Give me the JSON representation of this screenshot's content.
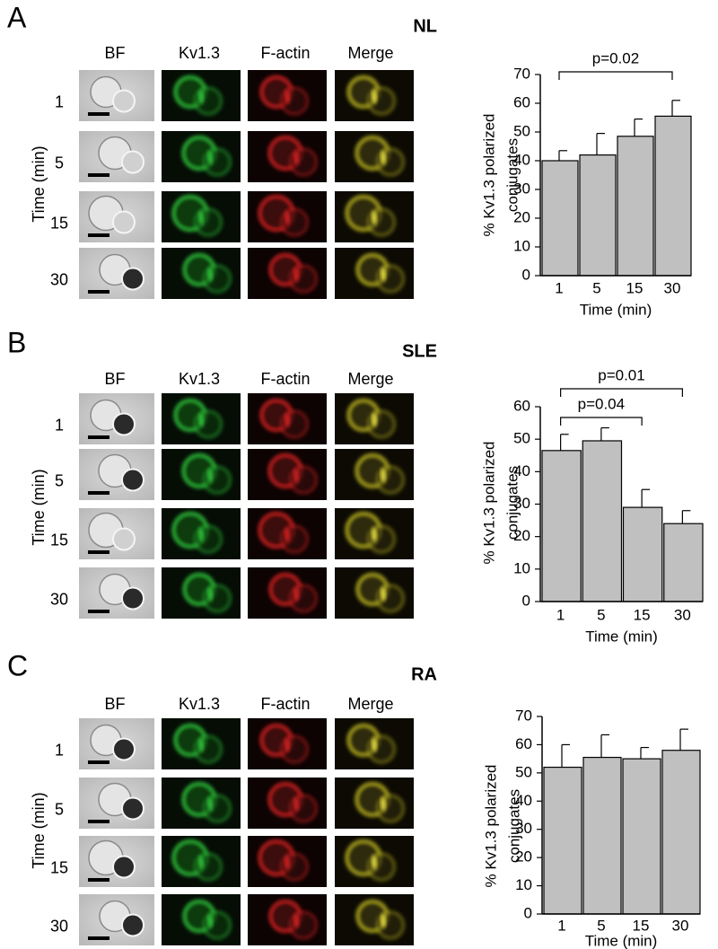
{
  "panels": [
    {
      "label": "A",
      "group": "NL",
      "columns": [
        "BF",
        "Kv1.3",
        "F-actin",
        "Merge"
      ],
      "rows": [
        "1",
        "5",
        "15",
        "30"
      ],
      "row_axis_label": "Time (min)"
    },
    {
      "label": "B",
      "group": "SLE",
      "columns": [
        "BF",
        "Kv1.3",
        "F-actin",
        "Merge"
      ],
      "rows": [
        "1",
        "5",
        "15",
        "30"
      ],
      "row_axis_label": "Time (min)"
    },
    {
      "label": "C",
      "group": "RA",
      "columns": [
        "BF",
        "Kv1.3",
        "F-actin",
        "Merge"
      ],
      "rows": [
        "1",
        "5",
        "15",
        "30"
      ],
      "row_axis_label": "Time (min)"
    }
  ],
  "chart_data": [
    {
      "type": "bar",
      "categories": [
        "1",
        "5",
        "15",
        "30"
      ],
      "values": [
        40,
        42,
        48.5,
        55.5
      ],
      "errors": [
        3.5,
        7.5,
        6,
        5.5
      ],
      "color": "#c0c0c0",
      "ylim": [
        0,
        70
      ],
      "yticks": [
        0,
        10,
        20,
        30,
        40,
        50,
        60,
        70
      ],
      "ylabel": [
        "% Kv1.3 polarized",
        "conjugates"
      ],
      "xlabel": "Time (min)",
      "annotations": [
        "p=0.02"
      ]
    },
    {
      "type": "bar",
      "categories": [
        "1",
        "5",
        "15",
        "30"
      ],
      "values": [
        46.5,
        49.5,
        29,
        24
      ],
      "errors": [
        5,
        4,
        5.5,
        4
      ],
      "color": "#c0c0c0",
      "ylim": [
        0,
        60
      ],
      "yticks": [
        0,
        10,
        20,
        30,
        40,
        50,
        60
      ],
      "ylabel": [
        "% Kv1.3 polarized",
        "conjugates"
      ],
      "xlabel": "Time (min)",
      "annotations": [
        "p=0.04",
        "p=0.01"
      ]
    },
    {
      "type": "bar",
      "categories": [
        "1",
        "5",
        "15",
        "30"
      ],
      "values": [
        52,
        55.5,
        55,
        58
      ],
      "errors": [
        8,
        8,
        4,
        7.5
      ],
      "color": "#c0c0c0",
      "ylim": [
        0,
        70
      ],
      "yticks": [
        0,
        10,
        20,
        30,
        40,
        50,
        60,
        70
      ],
      "ylabel": [
        "% Kv1.3 polarized",
        "conjugates"
      ],
      "xlabel": "Time (min)",
      "annotations": []
    }
  ]
}
